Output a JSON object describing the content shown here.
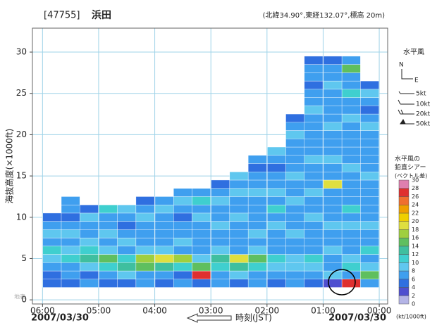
{
  "chart_data": {
    "type": "heatmap",
    "station_id": "[47755]",
    "station": "浜田",
    "location": "(北緯34.90°,東経132.07°,標高 20m)",
    "y_label": "海抜高度(×1000ft)",
    "x_label": "時刻(JST)",
    "date_left": "2007/03/30",
    "date_right": "2007/03/30",
    "surface_label": "地表",
    "xlim": [
      6.18,
      -0.15
    ],
    "xticks": [
      {
        "value": 6,
        "label": "06:00"
      },
      {
        "value": 5,
        "label": "05:00"
      },
      {
        "value": 4,
        "label": "04:00"
      },
      {
        "value": 3,
        "label": "03:00"
      },
      {
        "value": 2,
        "label": "02:00"
      },
      {
        "value": 1,
        "label": "01:00"
      },
      {
        "value": 0,
        "label": "00:00"
      }
    ],
    "ylim": [
      -0.5,
      32.9
    ],
    "yticks": [
      0,
      5,
      10,
      15,
      20,
      25,
      30
    ],
    "grid": true,
    "x": [
      5.83,
      5.5,
      5.17,
      4.83,
      4.5,
      4.17,
      3.83,
      3.5,
      3.17,
      2.83,
      2.5,
      2.17,
      1.83,
      1.5,
      1.17,
      0.83,
      0.5,
      0.17
    ],
    "heights": [
      2,
      3,
      4,
      5,
      6,
      7,
      8,
      9,
      10,
      11,
      12,
      13,
      14,
      15,
      16,
      17,
      18,
      19,
      20,
      21,
      22,
      23,
      24,
      25,
      26,
      27,
      28,
      29
    ],
    "values": [
      [
        4,
        4,
        6,
        8,
        10,
        6,
        8,
        6,
        4,
        null,
        null,
        null,
        null,
        null,
        null,
        null,
        null,
        null,
        null,
        null,
        null,
        null,
        null,
        null,
        null,
        null,
        null,
        null
      ],
      [
        4,
        6,
        6,
        10,
        8,
        6,
        8,
        6,
        4,
        6,
        6,
        null,
        null,
        null,
        null,
        null,
        null,
        null,
        null,
        null,
        null,
        null,
        null,
        null,
        null,
        null,
        null,
        null
      ],
      [
        6,
        4,
        8,
        12,
        10,
        8,
        6,
        6,
        8,
        4,
        null,
        null,
        null,
        null,
        null,
        null,
        null,
        null,
        null,
        null,
        null,
        null,
        null,
        null,
        null,
        null,
        null,
        null
      ],
      [
        4,
        6,
        10,
        14,
        8,
        6,
        8,
        6,
        6,
        10,
        null,
        null,
        null,
        null,
        null,
        null,
        null,
        null,
        null,
        null,
        null,
        null,
        null,
        null,
        null,
        null,
        null,
        null
      ],
      [
        4,
        8,
        12,
        10,
        6,
        8,
        6,
        4,
        6,
        8,
        null,
        null,
        null,
        null,
        null,
        null,
        null,
        null,
        null,
        null,
        null,
        null,
        null,
        null,
        null,
        null,
        null,
        null
      ],
      [
        6,
        6,
        14,
        16,
        8,
        6,
        6,
        6,
        8,
        6,
        4,
        null,
        null,
        null,
        null,
        null,
        null,
        null,
        null,
        null,
        null,
        null,
        null,
        null,
        null,
        null,
        null,
        null
      ],
      [
        4,
        6,
        12,
        18,
        8,
        6,
        6,
        6,
        6,
        8,
        6,
        null,
        null,
        null,
        null,
        null,
        null,
        null,
        null,
        null,
        null,
        null,
        null,
        null,
        null,
        null,
        null,
        null
      ],
      [
        6,
        4,
        10,
        16,
        6,
        8,
        6,
        6,
        4,
        6,
        8,
        6,
        null,
        null,
        null,
        null,
        null,
        null,
        null,
        null,
        null,
        null,
        null,
        null,
        null,
        null,
        null,
        null
      ],
      [
        4,
        26,
        14,
        8,
        6,
        6,
        6,
        6,
        8,
        6,
        10,
        6,
        null,
        null,
        null,
        null,
        null,
        null,
        null,
        null,
        null,
        null,
        null,
        null,
        null,
        null,
        null,
        null
      ],
      [
        6,
        6,
        10,
        12,
        8,
        6,
        6,
        8,
        6,
        6,
        8,
        6,
        4,
        null,
        null,
        null,
        null,
        null,
        null,
        null,
        null,
        null,
        null,
        null,
        null,
        null,
        null,
        null
      ],
      [
        4,
        8,
        12,
        18,
        6,
        6,
        6,
        6,
        8,
        6,
        6,
        8,
        6,
        8,
        null,
        null,
        null,
        null,
        null,
        null,
        null,
        null,
        null,
        null,
        null,
        null,
        null,
        null
      ],
      [
        6,
        6,
        10,
        14,
        8,
        6,
        8,
        6,
        6,
        6,
        6,
        8,
        6,
        6,
        4,
        6,
        null,
        null,
        null,
        null,
        null,
        null,
        null,
        null,
        null,
        null,
        null,
        null
      ],
      [
        4,
        6,
        8,
        10,
        6,
        6,
        6,
        8,
        6,
        10,
        6,
        8,
        6,
        6,
        4,
        6,
        8,
        null,
        null,
        null,
        null,
        null,
        null,
        null,
        null,
        null,
        null,
        null
      ],
      [
        6,
        6,
        8,
        8,
        6,
        6,
        8,
        6,
        6,
        6,
        8,
        6,
        6,
        8,
        6,
        6,
        6,
        6,
        8,
        6,
        4,
        null,
        null,
        null,
        null,
        null,
        null,
        null
      ],
      [
        4,
        6,
        8,
        10,
        6,
        6,
        6,
        6,
        8,
        6,
        6,
        8,
        6,
        6,
        6,
        8,
        6,
        6,
        6,
        6,
        6,
        8,
        6,
        6,
        4,
        6,
        6,
        4
      ],
      [
        2,
        8,
        6,
        6,
        8,
        6,
        6,
        8,
        6,
        6,
        6,
        6,
        18,
        6,
        6,
        8,
        6,
        6,
        6,
        8,
        6,
        6,
        6,
        6,
        8,
        6,
        6,
        4
      ],
      [
        26,
        6,
        10,
        8,
        6,
        6,
        6,
        8,
        6,
        10,
        6,
        6,
        6,
        6,
        8,
        6,
        6,
        6,
        6,
        6,
        8,
        6,
        6,
        10,
        6,
        6,
        14,
        6
      ],
      [
        6,
        14,
        8,
        6,
        10,
        6,
        6,
        8,
        6,
        6,
        6,
        6,
        6,
        8,
        6,
        6,
        6,
        6,
        6,
        8,
        6,
        4,
        6,
        8,
        4,
        null,
        null,
        null
      ]
    ],
    "wind_legend": {
      "title": "水平風",
      "north": "N",
      "east": "E",
      "speeds": [
        "5kt",
        "10kt",
        "20kt",
        "50kt"
      ]
    },
    "colorbar": {
      "title": [
        "水平風の",
        "鉛直シアー",
        "(ベクトル差)"
      ],
      "unit": "(kt/1000ft)",
      "ticks": [
        0,
        2,
        4,
        6,
        8,
        10,
        12,
        14,
        16,
        18,
        20,
        22,
        24,
        26,
        28,
        30
      ],
      "colors": [
        "#b4b4e6",
        "#4f4fcf",
        "#2f6fe0",
        "#3f9fef",
        "#5fc7ef",
        "#3fcfcf",
        "#3fbf9f",
        "#5fbf5f",
        "#9fcf3f",
        "#dfdf3f",
        "#efcf00",
        "#ef9f00",
        "#ef6f2f",
        "#df2f2f",
        "#df7faf"
      ]
    }
  }
}
